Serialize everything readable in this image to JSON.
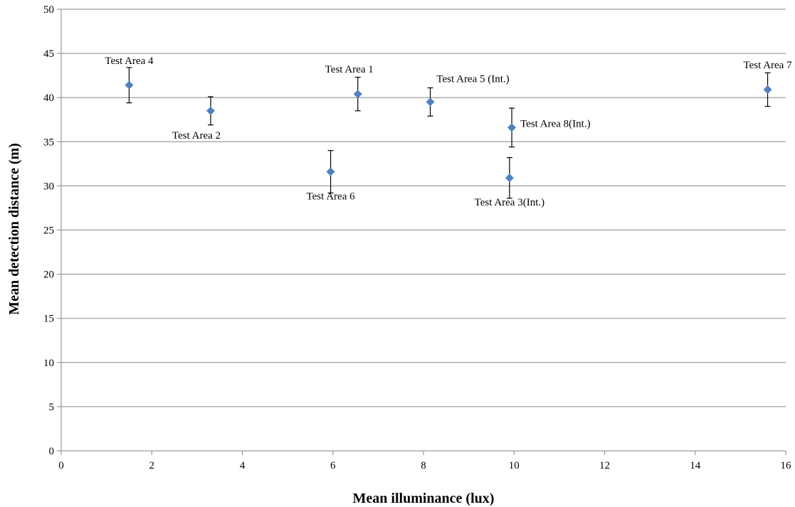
{
  "chart_data": {
    "type": "scatter",
    "title": "",
    "xlabel": "Mean illuminance (lux)",
    "ylabel": "Mean detection distance (m)",
    "xlim": [
      0,
      16
    ],
    "ylim": [
      0,
      50
    ],
    "x_ticks": [
      0,
      2,
      4,
      6,
      8,
      10,
      12,
      14,
      16
    ],
    "y_ticks": [
      0,
      5,
      10,
      15,
      20,
      25,
      30,
      35,
      40,
      45,
      50
    ],
    "grid": "horizontal major gridlines",
    "legend": "none",
    "marker": "diamond",
    "colors": {
      "marker": "#4f81bd",
      "gridline": "#868686",
      "error_bar": "#000000"
    },
    "points": [
      {
        "label": "Test Area 4",
        "x": 1.5,
        "y": 41.4,
        "err": 2.0,
        "label_pos": "above"
      },
      {
        "label": "Test Area 2",
        "x": 3.3,
        "y": 38.5,
        "err": 1.6,
        "label_pos": "below-left"
      },
      {
        "label": "Test Area 6",
        "x": 5.95,
        "y": 31.6,
        "err": 2.4,
        "label_pos": "below"
      },
      {
        "label": "Test Area 1",
        "x": 6.55,
        "y": 40.4,
        "err": 1.9,
        "label_pos": "above-left"
      },
      {
        "label": "Test Area 5 (Int.)",
        "x": 8.15,
        "y": 39.5,
        "err": 1.6,
        "label_pos": "above-right"
      },
      {
        "label": "Test Area 3(Int.)",
        "x": 9.9,
        "y": 30.9,
        "err": 2.3,
        "label_pos": "below"
      },
      {
        "label": "Test Area 8(Int.)",
        "x": 9.95,
        "y": 36.6,
        "err": 2.2,
        "label_pos": "right"
      },
      {
        "label": "Test Area 7",
        "x": 15.6,
        "y": 40.9,
        "err": 1.9,
        "label_pos": "above"
      }
    ]
  }
}
